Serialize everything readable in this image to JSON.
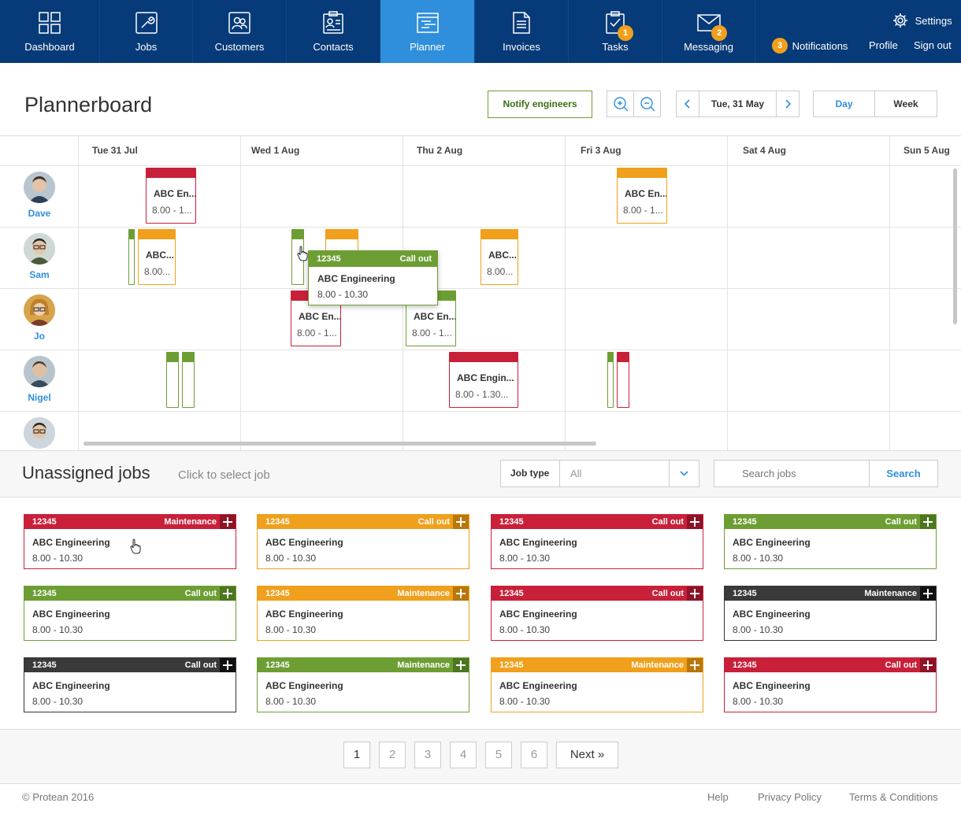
{
  "nav": {
    "items": [
      {
        "label": "Dashboard",
        "icon": "dashboard-icon"
      },
      {
        "label": "Jobs",
        "icon": "wrench-icon"
      },
      {
        "label": "Customers",
        "icon": "customers-icon"
      },
      {
        "label": "Contacts",
        "icon": "contacts-icon"
      },
      {
        "label": "Planner",
        "icon": "planner-icon"
      },
      {
        "label": "Invoices",
        "icon": "invoice-icon"
      },
      {
        "label": "Tasks",
        "icon": "tasks-icon",
        "badge": "1"
      },
      {
        "label": "Messaging",
        "icon": "envelope-icon",
        "badge": "2"
      }
    ],
    "settings": "Settings",
    "notifications": "Notifications",
    "notifications_count": "3",
    "profile": "Profile",
    "signout": "Sign out"
  },
  "header": {
    "title": "Plannerboard",
    "notify": "Notify engineers",
    "date": "Tue, 31 May",
    "day": "Day",
    "week": "Week"
  },
  "planner": {
    "days": [
      "Tue 31 Jul",
      "Wed 1 Aug",
      "Thu 2 Aug",
      "Fri 3 Aug",
      "Sat 4 Aug",
      "Sun 5 Aug"
    ],
    "engineers": [
      "Dave",
      "Sam",
      "Jo",
      "Nigel",
      ""
    ],
    "block_title": "ABC En...",
    "block_title_short": "ABC...",
    "block_title_long": "ABC Engin...",
    "block_time": "8.00 - 1...",
    "block_time_short": "8.00...",
    "block_time_long": "8.00 - 1.30...",
    "popup": {
      "number": "12345",
      "type": "Call out",
      "name": "ABC Engineering",
      "time": "8.00 - 10.30"
    }
  },
  "unassigned": {
    "title": "Unassigned jobs",
    "hint": "Click to select job",
    "job_type_label": "Job type",
    "job_type_value": "All",
    "search_placeholder": "Search jobs",
    "search_button": "Search",
    "cards": [
      {
        "number": "12345",
        "type": "Maintenance",
        "name": "ABC Engineering",
        "time": "8.00 - 10.30",
        "color": "red"
      },
      {
        "number": "12345",
        "type": "Call out",
        "name": "ABC Engineering",
        "time": "8.00 - 10.30",
        "color": "orange"
      },
      {
        "number": "12345",
        "type": "Call out",
        "name": "ABC Engineering",
        "time": "8.00 - 10.30",
        "color": "red"
      },
      {
        "number": "12345",
        "type": "Call out",
        "name": "ABC Engineering",
        "time": "8.00 - 10.30",
        "color": "green"
      },
      {
        "number": "12345",
        "type": "Call out",
        "name": "ABC Engineering",
        "time": "8.00 - 10.30",
        "color": "green"
      },
      {
        "number": "12345",
        "type": "Maintenance",
        "name": "ABC Engineering",
        "time": "8.00 - 10.30",
        "color": "orange"
      },
      {
        "number": "12345",
        "type": "Call out",
        "name": "ABC Engineering",
        "time": "8.00 - 10.30",
        "color": "red"
      },
      {
        "number": "12345",
        "type": "Maintenance",
        "name": "ABC Engineering",
        "time": "8.00 - 10.30",
        "color": "dark"
      },
      {
        "number": "12345",
        "type": "Call out",
        "name": "ABC Engineering",
        "time": "8.00 - 10.30",
        "color": "dark"
      },
      {
        "number": "12345",
        "type": "Maintenance",
        "name": "ABC Engineering",
        "time": "8.00 - 10.30",
        "color": "green"
      },
      {
        "number": "12345",
        "type": "Maintenance",
        "name": "ABC Engineering",
        "time": "8.00 - 10.30",
        "color": "orange"
      },
      {
        "number": "12345",
        "type": "Call out",
        "name": "ABC Engineering",
        "time": "8.00 - 10.30",
        "color": "red"
      }
    ]
  },
  "pagination": {
    "pages": [
      "1",
      "2",
      "3",
      "4",
      "5",
      "6"
    ],
    "next": "Next »"
  },
  "footer": {
    "copyright": "© Protean 2016",
    "help": "Help",
    "privacy": "Privacy Policy",
    "terms": "Terms & Conditions"
  },
  "colors": {
    "nav": "#073a78",
    "active": "#2f8fdc",
    "red": "#c9203a",
    "orange": "#f0a01c",
    "green": "#6d9e33",
    "dark": "#3a3a3a"
  }
}
